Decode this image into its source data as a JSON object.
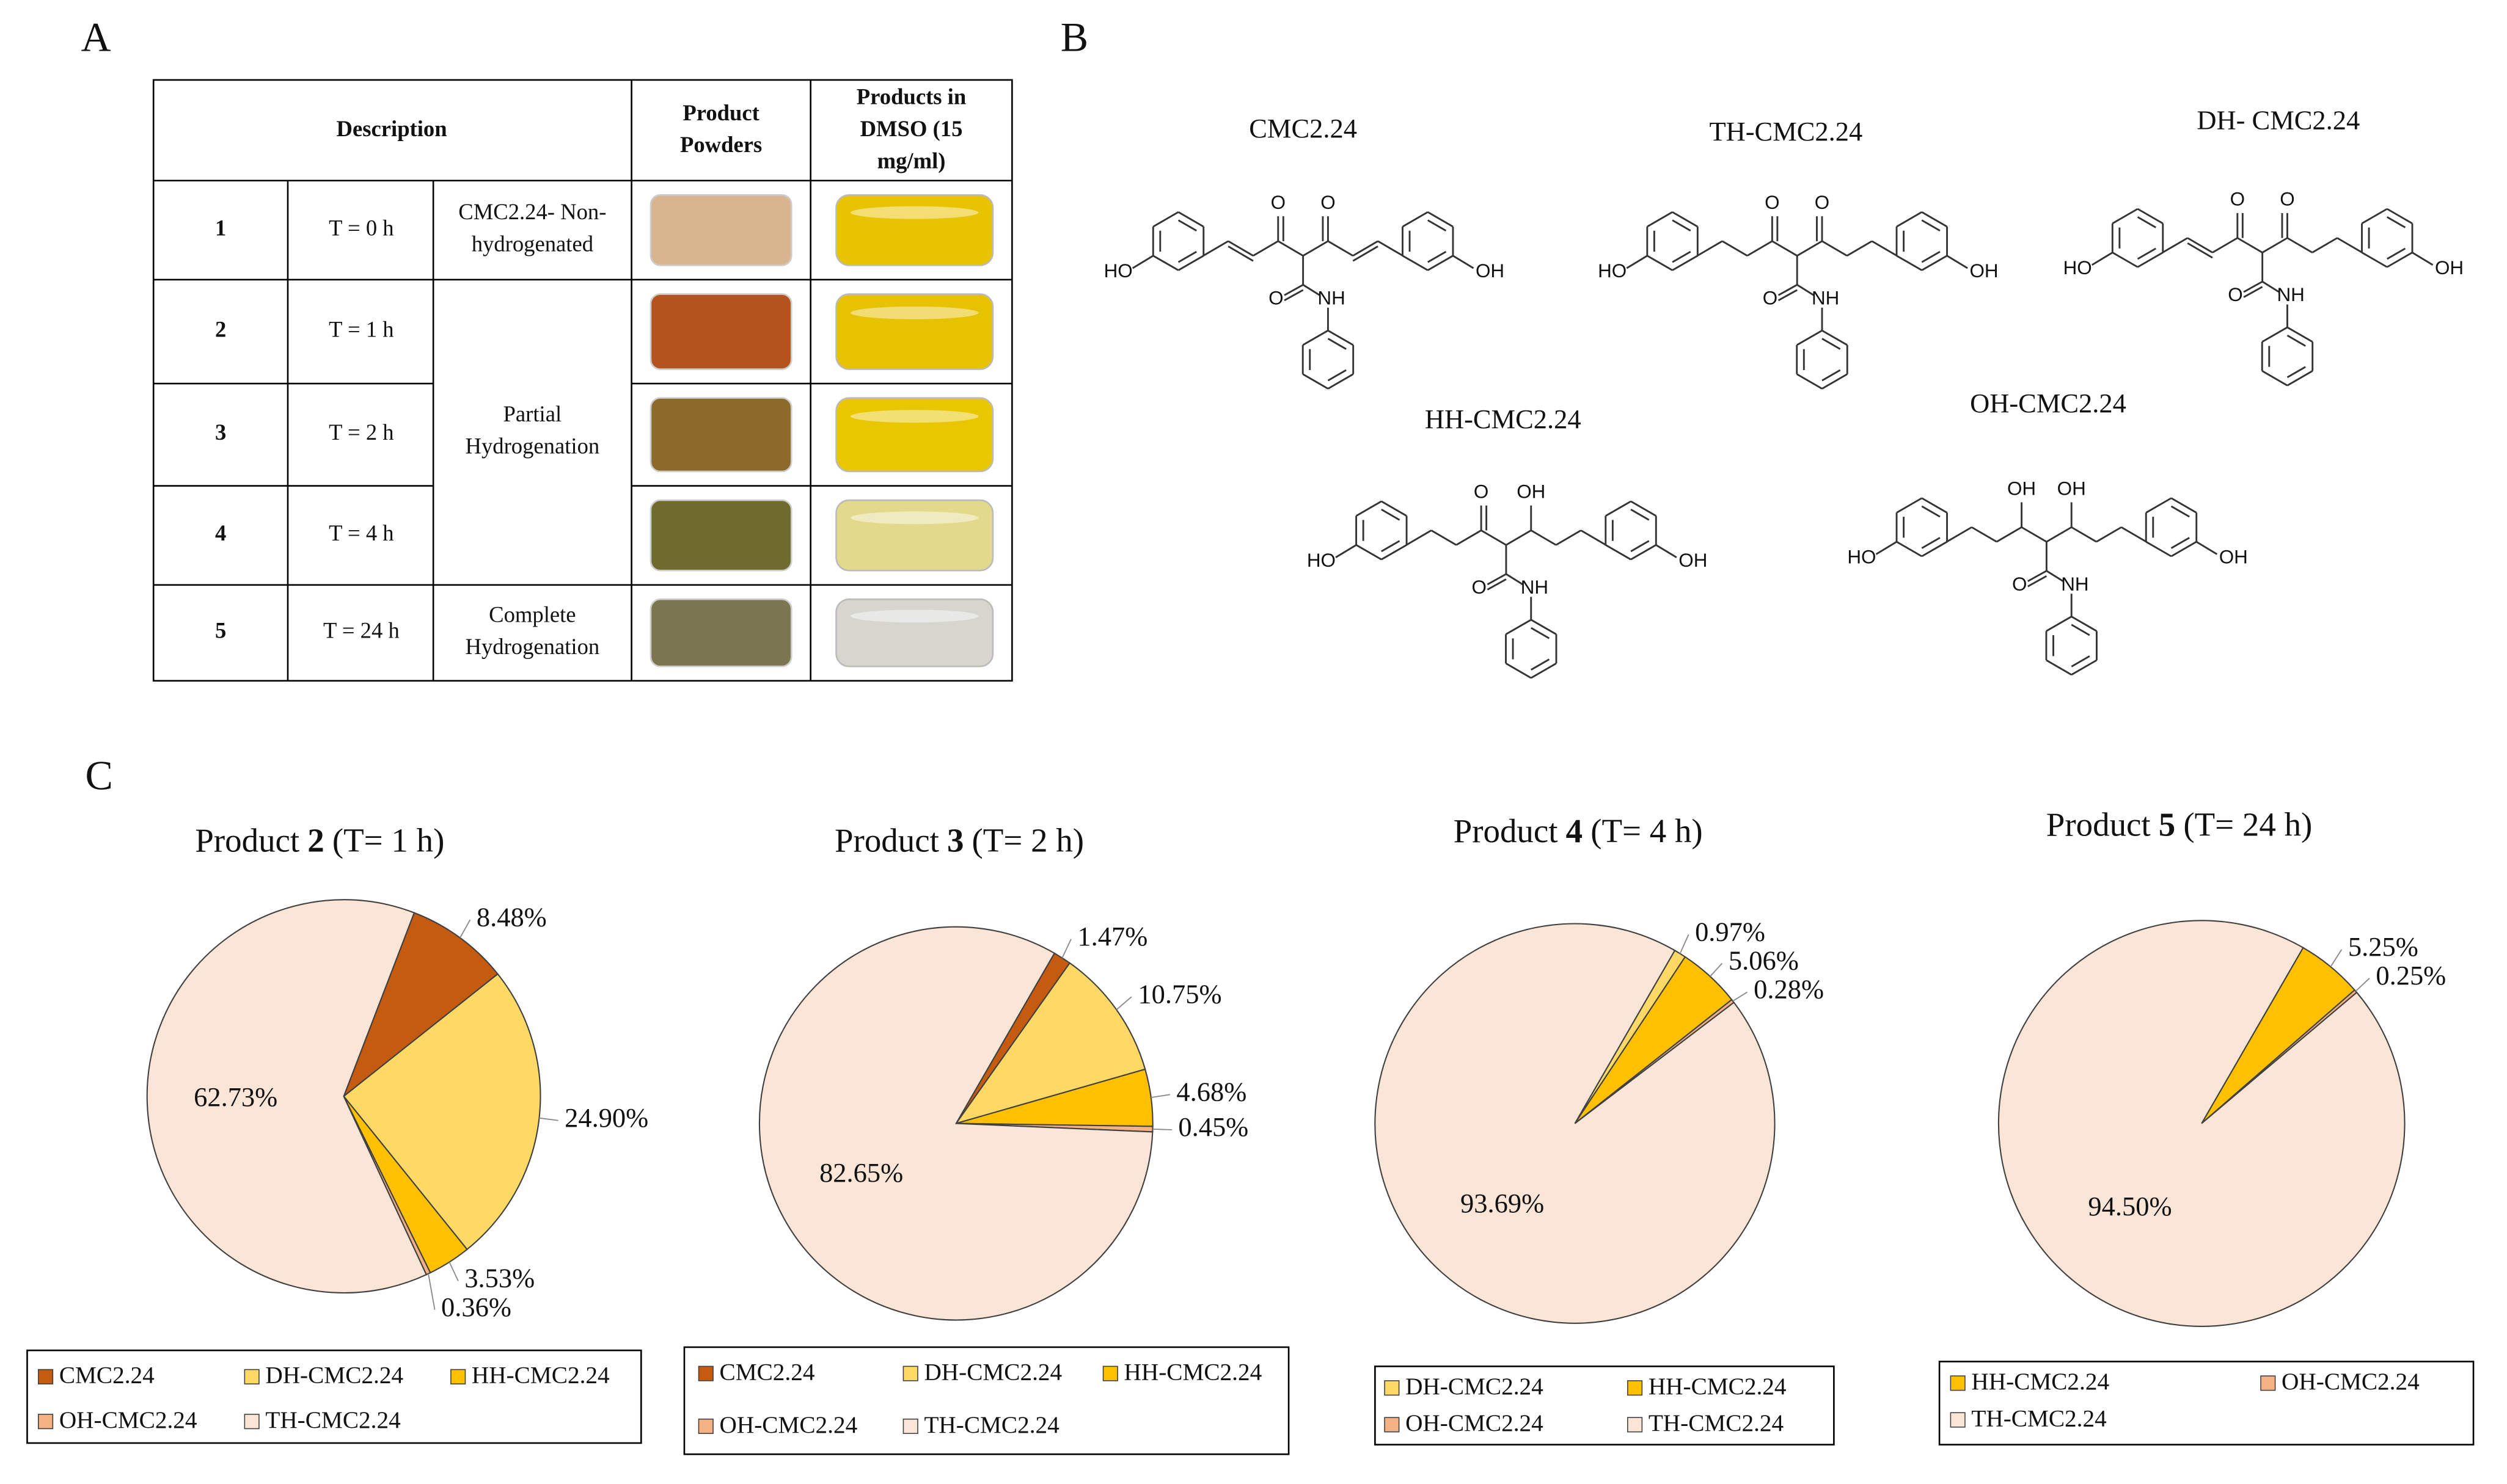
{
  "panel_labels": [
    "A",
    "B",
    "C"
  ],
  "table": {
    "header": {
      "description": "Description",
      "powders": [
        "Product",
        "Powders"
      ],
      "dmso": [
        "Products in",
        "DMSO (15",
        "mg/ml)"
      ]
    },
    "rows": [
      {
        "no": "1",
        "time": "T = 0 h"
      },
      {
        "no": "2",
        "time": "T = 1 h"
      },
      {
        "no": "3",
        "time": "T = 2 h"
      },
      {
        "no": "4",
        "time": "T = 4 h"
      },
      {
        "no": "5",
        "time": "T = 24 h"
      }
    ],
    "groups": [
      [
        "CMC2.24- Non-",
        "hydrogenated"
      ],
      [
        "Partial",
        "Hydrogenation"
      ],
      [
        "Complete",
        "Hydrogenation"
      ]
    ]
  },
  "structures": [
    {
      "name": "CMC2.24",
      "atoms": [
        "HO",
        "O",
        "O",
        "O",
        "NH",
        "OH"
      ]
    },
    {
      "name": "TH-CMC2.24",
      "atoms": [
        "HO",
        "O",
        "O",
        "O",
        "NH",
        "OH"
      ]
    },
    {
      "name": "DH- CMC2.24",
      "atoms": [
        "HO",
        "O",
        "O",
        "O",
        "NH",
        "OH"
      ]
    },
    {
      "name": "HH-CMC2.24",
      "atoms": [
        "HO",
        "O",
        "OH",
        "O",
        "NH",
        "OH"
      ]
    },
    {
      "name": "OH-CMC2.24",
      "atoms": [
        "HO",
        "OH",
        "OH",
        "O",
        "NH",
        "OH"
      ]
    }
  ],
  "chart_data": [
    {
      "type": "pie",
      "title": {
        "prefix": "Product",
        "number": "2",
        "suffix": "(T= 1 h)"
      },
      "categories": [
        "CMC2.24",
        "DH-CMC2.24",
        "HH-CMC2.24",
        "OH-CMC2.24",
        "TH-CMC2.24"
      ],
      "colors": [
        "#c55a11",
        "#ffd966",
        "#ffc000",
        "#f4b183",
        "#fbe5d6"
      ],
      "values": [
        8.48,
        24.9,
        3.53,
        0.36,
        62.73
      ],
      "value_labels": [
        "8.48%",
        "24.90%",
        "3.53%",
        "0.36%",
        "62.73%"
      ]
    },
    {
      "type": "pie",
      "title": {
        "prefix": "Product",
        "number": "3",
        "suffix": "(T= 2 h)"
      },
      "categories": [
        "CMC2.24",
        "DH-CMC2.24",
        "HH-CMC2.24",
        "OH-CMC2.24",
        "TH-CMC2.24"
      ],
      "colors": [
        "#c55a11",
        "#ffd966",
        "#ffc000",
        "#f4b183",
        "#fbe5d6"
      ],
      "values": [
        1.47,
        10.75,
        4.68,
        0.45,
        82.65
      ],
      "value_labels": [
        "1.47%",
        "10.75%",
        "4.68%",
        "0.45%",
        "82.65%"
      ]
    },
    {
      "type": "pie",
      "title": {
        "prefix": "Product",
        "number": "4",
        "suffix": "(T= 4 h)"
      },
      "categories": [
        "DH-CMC2.24",
        "HH-CMC2.24",
        "OH-CMC2.24",
        "TH-CMC2.24"
      ],
      "colors": [
        "#ffd966",
        "#ffc000",
        "#f4b183",
        "#fbe5d6"
      ],
      "values": [
        0.97,
        5.06,
        0.28,
        93.69
      ],
      "value_labels": [
        "0.97%",
        "5.06%",
        "0.28%",
        "93.69%"
      ]
    },
    {
      "type": "pie",
      "title": {
        "prefix": "Product",
        "number": "5",
        "suffix": "(T= 24 h)"
      },
      "categories": [
        "HH-CMC2.24",
        "OH-CMC2.24",
        "TH-CMC2.24"
      ],
      "colors": [
        "#ffc000",
        "#f4b183",
        "#fbe5d6"
      ],
      "values": [
        5.25,
        0.25,
        94.5
      ],
      "value_labels": [
        "5.25%",
        "0.25%",
        "94.50%"
      ]
    }
  ]
}
